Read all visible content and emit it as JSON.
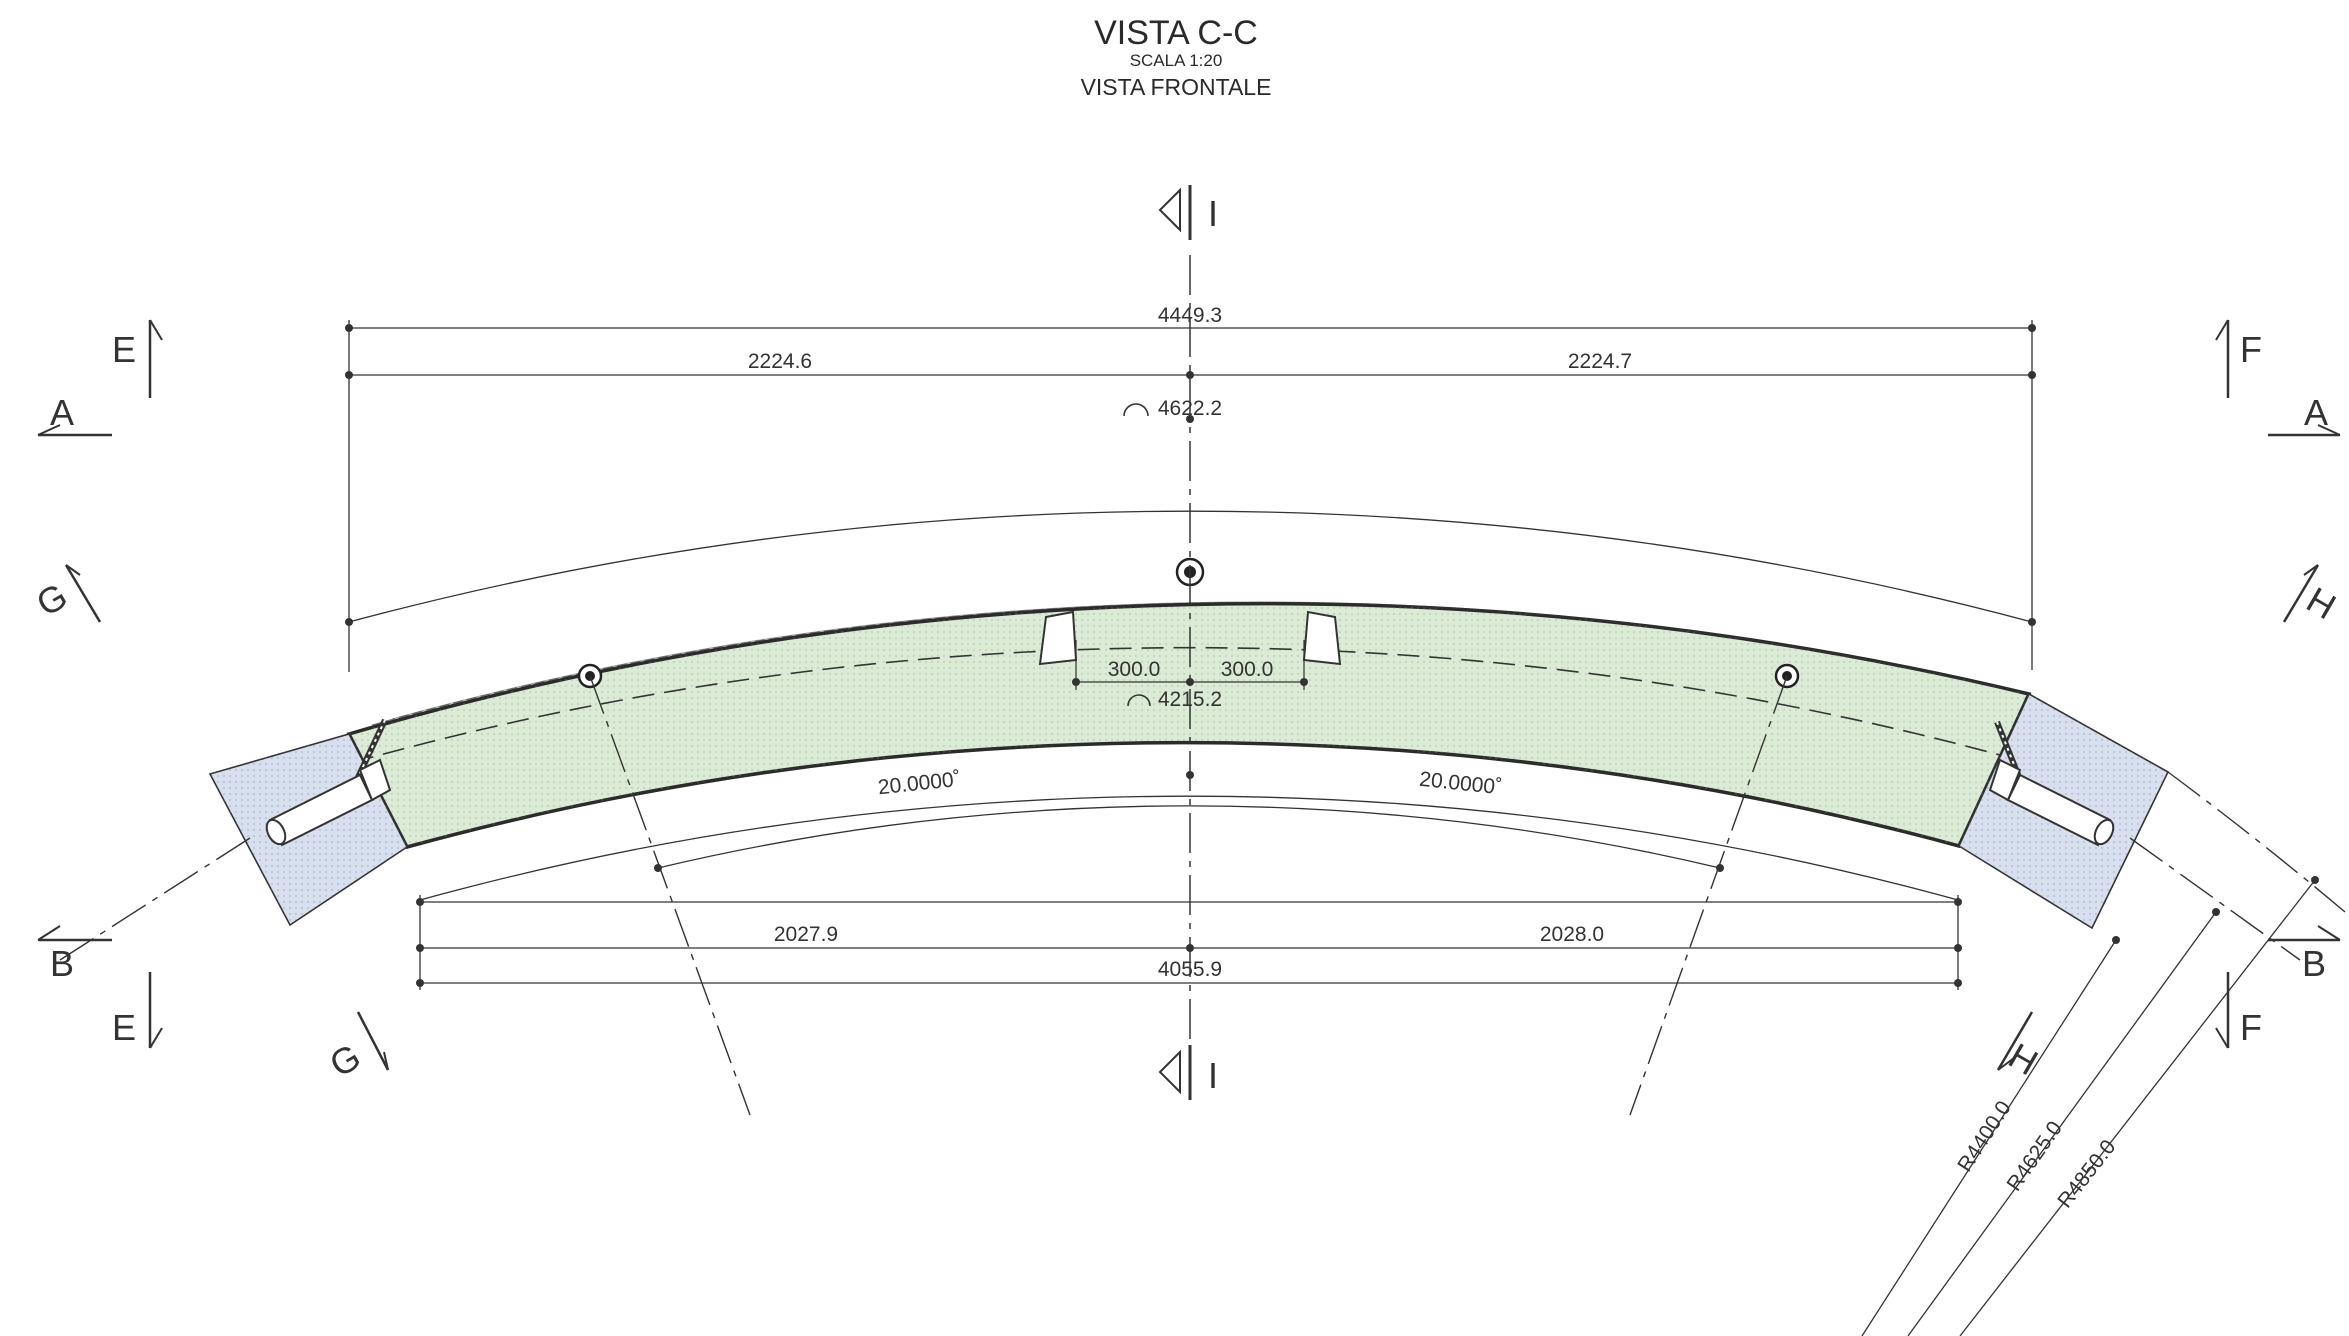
{
  "title": {
    "main": "VISTA C-C",
    "scale": "SCALA 1:20",
    "subtitle": "VISTA FRONTALE"
  },
  "dimensions": {
    "total_top": "4449.3",
    "half_top_left": "2224.6",
    "half_top_right": "2224.7",
    "arc_outer": "4622.2",
    "arc_inner": "4215.2",
    "offset_left": "300.0",
    "offset_right": "300.0",
    "angle_left": "20.0000˚",
    "angle_right": "20.0000˚",
    "half_bottom_left": "2027.9",
    "half_bottom_right": "2028.0",
    "total_bottom": "4055.9",
    "radius_inner": "R4400.0",
    "radius_mid": "R4625.0",
    "radius_outer": "R4850.0"
  },
  "section_marks": {
    "a": "A",
    "b": "B",
    "e": "E",
    "f": "F",
    "g": "G",
    "h": "H",
    "i": "I"
  },
  "colors": {
    "segment_fill": "#dcebd6",
    "end_fill": "#d8e0ef",
    "line": "#333333"
  }
}
